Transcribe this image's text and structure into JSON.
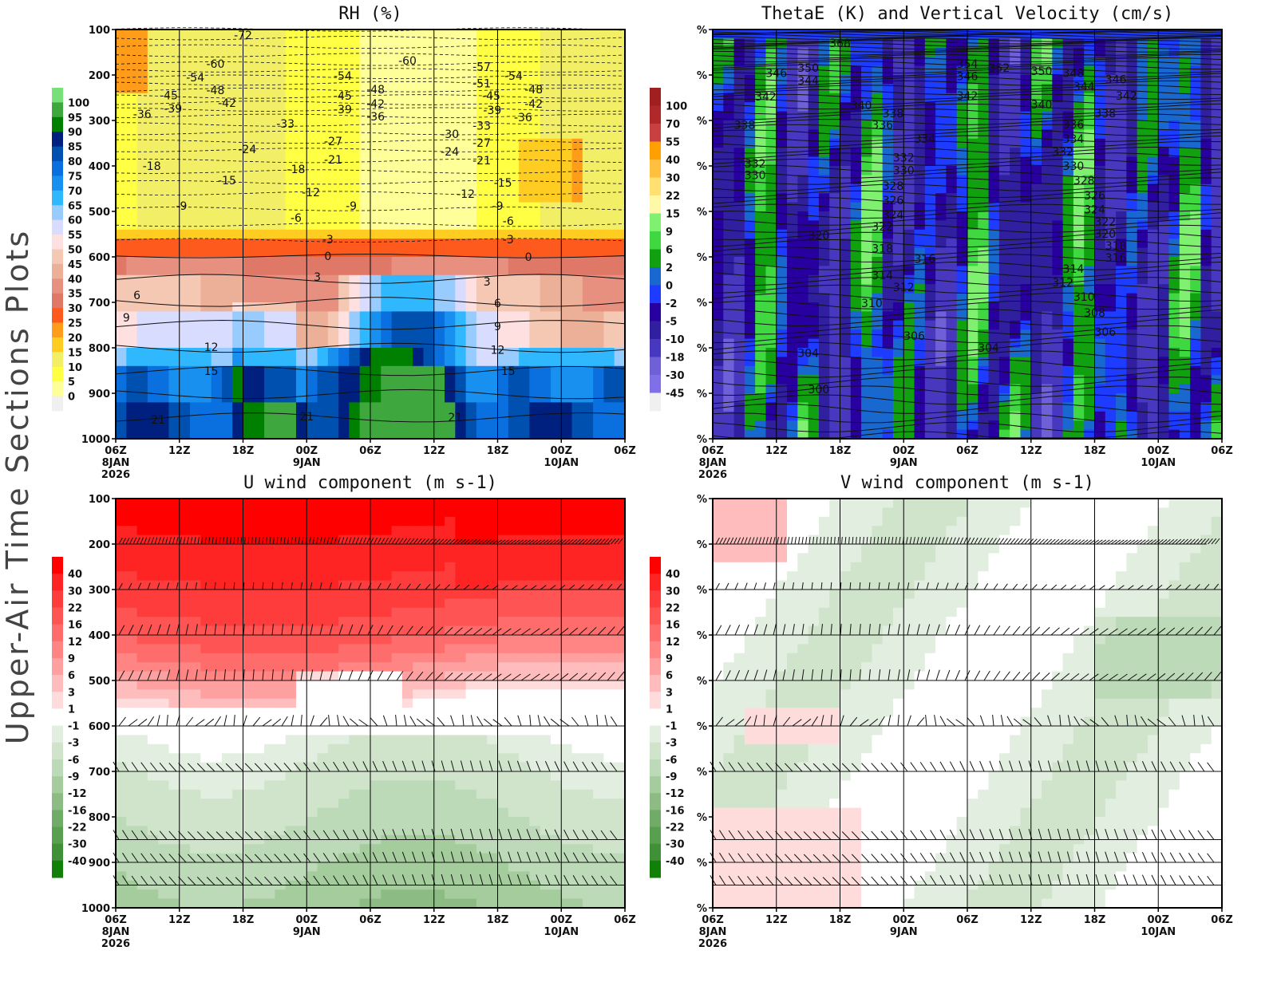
{
  "side_title": "Upper-Air Time Sections Plots",
  "x_ticks": [
    {
      "time": "06Z",
      "date": "8JAN",
      "year": "2026"
    },
    {
      "time": "12Z"
    },
    {
      "time": "18Z"
    },
    {
      "time": "00Z",
      "date": "9JAN"
    },
    {
      "time": "06Z"
    },
    {
      "time": "12Z"
    },
    {
      "time": "18Z"
    },
    {
      "time": "00Z",
      "date": "10JAN"
    },
    {
      "time": "06Z"
    }
  ],
  "chart_data": [
    {
      "type": "heatmap",
      "title": "RH (%)",
      "field": "rh",
      "x_range_hours": [
        0,
        48
      ],
      "y_range_hPa": [
        100,
        1000
      ],
      "y_ticks": [
        "100",
        "200",
        "300",
        "400",
        "500",
        "600",
        "700",
        "800",
        "900",
        "1000"
      ],
      "colorbar": {
        "labels": [
          "100",
          "95",
          "90",
          "85",
          "80",
          "75",
          "70",
          "65",
          "60",
          "55",
          "50",
          "45",
          "40",
          "35",
          "30",
          "25",
          "20",
          "15",
          "10",
          "5",
          "0"
        ],
        "levels": [
          100,
          95,
          90,
          85,
          80,
          75,
          70,
          65,
          60,
          55,
          50,
          45,
          40,
          35,
          30,
          25,
          20,
          15,
          10,
          5,
          0
        ],
        "colors": [
          "#78e078",
          "#3ea83e",
          "#008000",
          "#002080",
          "#0050b0",
          "#0a70e0",
          "#1890f0",
          "#30b8ff",
          "#98ccff",
          "#d8dcff",
          "#ffe0e0",
          "#f5c8b4",
          "#ecb098",
          "#e89080",
          "#e07868",
          "#ff5a1e",
          "#ff9c1a",
          "#ffcc22",
          "#f2ee66",
          "#ffff44",
          "#ffff99",
          "#f0f0f0"
        ]
      },
      "contour_field": "temperature (C)",
      "contour_labels": [
        {
          "t": 12,
          "p": 112,
          "v": "-72"
        },
        {
          "t": 9.4,
          "p": 175,
          "v": "-60"
        },
        {
          "t": 7.5,
          "p": 205,
          "v": "-54"
        },
        {
          "t": 9.4,
          "p": 233,
          "v": "-48"
        },
        {
          "t": 5,
          "p": 245,
          "v": "-45"
        },
        {
          "t": 10.5,
          "p": 261,
          "v": "-42"
        },
        {
          "t": 5.4,
          "p": 274,
          "v": "-39"
        },
        {
          "t": 2.5,
          "p": 286,
          "v": "-36"
        },
        {
          "t": 16,
          "p": 307,
          "v": "-33"
        },
        {
          "t": 12.4,
          "p": 363,
          "v": "-24"
        },
        {
          "t": 3.4,
          "p": 400,
          "v": "-18"
        },
        {
          "t": 10.5,
          "p": 432,
          "v": "-15"
        },
        {
          "t": 6.2,
          "p": 488,
          "v": "-9"
        },
        {
          "t": 20.5,
          "p": 346,
          "v": "-27"
        },
        {
          "t": 20.5,
          "p": 386,
          "v": "-21"
        },
        {
          "t": 17,
          "p": 407,
          "v": "-18"
        },
        {
          "t": 18.4,
          "p": 458,
          "v": "-12"
        },
        {
          "t": 17,
          "p": 514,
          "v": "-6"
        },
        {
          "t": 22.2,
          "p": 488,
          "v": "-9"
        },
        {
          "t": 20,
          "p": 561,
          "v": "-3"
        },
        {
          "t": 20,
          "p": 598,
          "v": "0"
        },
        {
          "t": 19,
          "p": 644,
          "v": "3"
        },
        {
          "t": 21.4,
          "p": 202,
          "v": "-54"
        },
        {
          "t": 21.4,
          "p": 246,
          "v": "-45"
        },
        {
          "t": 21.4,
          "p": 275,
          "v": "-39"
        },
        {
          "t": 24.5,
          "p": 232,
          "v": "-48"
        },
        {
          "t": 24.5,
          "p": 263,
          "v": "-42"
        },
        {
          "t": 24.5,
          "p": 291,
          "v": "-36"
        },
        {
          "t": 27.5,
          "p": 168,
          "v": "-60"
        },
        {
          "t": 34.5,
          "p": 182,
          "v": "-57"
        },
        {
          "t": 34.5,
          "p": 218,
          "v": "-51"
        },
        {
          "t": 37.5,
          "p": 202,
          "v": "-54"
        },
        {
          "t": 35.4,
          "p": 246,
          "v": "-45"
        },
        {
          "t": 35.5,
          "p": 277,
          "v": "-39"
        },
        {
          "t": 39.4,
          "p": 232,
          "v": "-48"
        },
        {
          "t": 39.4,
          "p": 263,
          "v": "-42"
        },
        {
          "t": 38.4,
          "p": 293,
          "v": "-36"
        },
        {
          "t": 31.5,
          "p": 330,
          "v": "-30"
        },
        {
          "t": 34.5,
          "p": 311,
          "v": "-33"
        },
        {
          "t": 31.5,
          "p": 368,
          "v": "-24"
        },
        {
          "t": 34.5,
          "p": 349,
          "v": "-27"
        },
        {
          "t": 34.5,
          "p": 388,
          "v": "-21"
        },
        {
          "t": 36.5,
          "p": 437,
          "v": "-15"
        },
        {
          "t": 33,
          "p": 461,
          "v": "-12"
        },
        {
          "t": 36,
          "p": 488,
          "v": "-9"
        },
        {
          "t": 37,
          "p": 521,
          "v": "-6"
        },
        {
          "t": 37,
          "p": 561,
          "v": "-3"
        },
        {
          "t": 38.9,
          "p": 600,
          "v": "0"
        },
        {
          "t": 35,
          "p": 654,
          "v": "3"
        },
        {
          "t": 36,
          "p": 702,
          "v": "6"
        },
        {
          "t": 36,
          "p": 753,
          "v": "9"
        },
        {
          "t": 36,
          "p": 804,
          "v": "12"
        },
        {
          "t": 37,
          "p": 851,
          "v": "15"
        },
        {
          "t": 32,
          "p": 953,
          "v": "21"
        },
        {
          "t": 18,
          "p": 951,
          "v": "21"
        },
        {
          "t": 4,
          "p": 958,
          "v": "21"
        },
        {
          "t": 9,
          "p": 851,
          "v": "15"
        },
        {
          "t": 9,
          "p": 798,
          "v": "12"
        },
        {
          "t": 1,
          "p": 733,
          "v": "9"
        },
        {
          "t": 2,
          "p": 684,
          "v": "6"
        }
      ]
    },
    {
      "type": "heatmap",
      "title": "ThetaE (K) and Vertical Velocity (cm/s)",
      "field": "omega",
      "x_range_hours": [
        0,
        48
      ],
      "y_range_hPa": [
        100,
        1000
      ],
      "y_ticks": [
        "%",
        "%",
        "%",
        "%",
        "%",
        "%",
        "%",
        "%",
        "%",
        "%"
      ],
      "colorbar": {
        "labels": [
          "100",
          "70",
          "55",
          "40",
          "30",
          "22",
          "15",
          "9",
          "6",
          "2",
          "0",
          "-2",
          "-5",
          "-10",
          "-18",
          "-30",
          "-45"
        ],
        "levels": [
          100,
          70,
          55,
          40,
          30,
          22,
          15,
          9,
          6,
          2,
          0,
          -2,
          -5,
          -10,
          -18,
          -30,
          -45
        ],
        "colors": [
          "#a02020",
          "#b02828",
          "#c84040",
          "#ffa000",
          "#ffc040",
          "#ffe070",
          "#fff8a8",
          "#80f070",
          "#40d840",
          "#10a010",
          "#1868d0",
          "#1e3cff",
          "#2800a0",
          "#3020a0",
          "#4838c0",
          "#7060d8",
          "#8070e8",
          "#f0f0f0"
        ]
      },
      "contour_field": "thetaE (K)",
      "contour_labels": [
        {
          "t": 12,
          "p": 130,
          "v": "368"
        },
        {
          "t": 9,
          "p": 184,
          "v": "350"
        },
        {
          "t": 6,
          "p": 196,
          "v": "346"
        },
        {
          "t": 9,
          "p": 212,
          "v": "344"
        },
        {
          "t": 5,
          "p": 247,
          "v": "342"
        },
        {
          "t": 14,
          "p": 267,
          "v": "340"
        },
        {
          "t": 3,
          "p": 310,
          "v": "338"
        },
        {
          "t": 17,
          "p": 284,
          "v": "338"
        },
        {
          "t": 16,
          "p": 310,
          "v": "336"
        },
        {
          "t": 20,
          "p": 340,
          "v": "334"
        },
        {
          "t": 4,
          "p": 395,
          "v": "332"
        },
        {
          "t": 4,
          "p": 420,
          "v": "330"
        },
        {
          "t": 18,
          "p": 382,
          "v": "332"
        },
        {
          "t": 18,
          "p": 410,
          "v": "330"
        },
        {
          "t": 17,
          "p": 444,
          "v": "328"
        },
        {
          "t": 17,
          "p": 475,
          "v": "326"
        },
        {
          "t": 17,
          "p": 507,
          "v": "324"
        },
        {
          "t": 16,
          "p": 533,
          "v": "322"
        },
        {
          "t": 10,
          "p": 553,
          "v": "320"
        },
        {
          "t": 16,
          "p": 582,
          "v": "318"
        },
        {
          "t": 20,
          "p": 604,
          "v": "316"
        },
        {
          "t": 16,
          "p": 640,
          "v": "314"
        },
        {
          "t": 18,
          "p": 667,
          "v": "312"
        },
        {
          "t": 15,
          "p": 702,
          "v": "310"
        },
        {
          "t": 19,
          "p": 774,
          "v": "306"
        },
        {
          "t": 9,
          "p": 811,
          "v": "304"
        },
        {
          "t": 26,
          "p": 800,
          "v": "304"
        },
        {
          "t": 10,
          "p": 891,
          "v": "300"
        },
        {
          "t": 24,
          "p": 175,
          "v": "354"
        },
        {
          "t": 24,
          "p": 203,
          "v": "346"
        },
        {
          "t": 27,
          "p": 184,
          "v": "352"
        },
        {
          "t": 31,
          "p": 191,
          "v": "350"
        },
        {
          "t": 24,
          "p": 246,
          "v": "342"
        },
        {
          "t": 31,
          "p": 265,
          "v": "340"
        },
        {
          "t": 34,
          "p": 196,
          "v": "348"
        },
        {
          "t": 35,
          "p": 225,
          "v": "344"
        },
        {
          "t": 38,
          "p": 210,
          "v": "346"
        },
        {
          "t": 39,
          "p": 246,
          "v": "342"
        },
        {
          "t": 37,
          "p": 284,
          "v": "338"
        },
        {
          "t": 34,
          "p": 309,
          "v": "336"
        },
        {
          "t": 34,
          "p": 340,
          "v": "334"
        },
        {
          "t": 33,
          "p": 368,
          "v": "332"
        },
        {
          "t": 34,
          "p": 400,
          "v": "330"
        },
        {
          "t": 35,
          "p": 432,
          "v": "328"
        },
        {
          "t": 36,
          "p": 465,
          "v": "326"
        },
        {
          "t": 36,
          "p": 496,
          "v": "324"
        },
        {
          "t": 37,
          "p": 523,
          "v": "322"
        },
        {
          "t": 37,
          "p": 549,
          "v": "320"
        },
        {
          "t": 38,
          "p": 575,
          "v": "318"
        },
        {
          "t": 38,
          "p": 602,
          "v": "316"
        },
        {
          "t": 34,
          "p": 626,
          "v": "314"
        },
        {
          "t": 33,
          "p": 656,
          "v": "312"
        },
        {
          "t": 35,
          "p": 688,
          "v": "310"
        },
        {
          "t": 36,
          "p": 723,
          "v": "308"
        },
        {
          "t": 37,
          "p": 765,
          "v": "306"
        }
      ]
    },
    {
      "type": "heatmap",
      "title": "U wind component (m s-1)",
      "field": "u",
      "x_range_hours": [
        0,
        48
      ],
      "y_range_hPa": [
        100,
        1000
      ],
      "y_ticks": [
        "100",
        "200",
        "300",
        "400",
        "500",
        "600",
        "700",
        "800",
        "900",
        "1000"
      ],
      "colorbar": {
        "labels": [
          "40",
          "30",
          "22",
          "16",
          "12",
          "9",
          "6",
          "3",
          "1",
          "-1",
          "-3",
          "-6",
          "-9",
          "-12",
          "-16",
          "-22",
          "-30",
          "-40"
        ],
        "levels": [
          40,
          30,
          22,
          16,
          12,
          9,
          6,
          3,
          1,
          -1,
          -3,
          -6,
          -9,
          -12,
          -16,
          -22,
          -30,
          -40
        ],
        "colors": [
          "#ff0000",
          "#ff2424",
          "#ff3c3c",
          "#ff5454",
          "#ff6c6c",
          "#ff8484",
          "#ffa0a0",
          "#ffbcbc",
          "#ffdcdc",
          "#ffffff",
          "#e2eee0",
          "#d0e4cc",
          "#bcdab8",
          "#a4cc9c",
          "#8cbc84",
          "#70ac68",
          "#58a050",
          "#409038",
          "#108008"
        ]
      },
      "barb_levels_hPa": [
        200,
        300,
        400,
        500,
        600,
        700,
        850,
        900,
        950
      ],
      "contour_labels": []
    },
    {
      "type": "heatmap",
      "title": "V wind component (m s-1)",
      "field": "v",
      "x_range_hours": [
        0,
        48
      ],
      "y_range_hPa": [
        100,
        1000
      ],
      "y_ticks": [
        "%",
        "%",
        "%",
        "%",
        "%",
        "%",
        "%",
        "%",
        "%",
        "%"
      ],
      "colorbar": {
        "labels": [
          "40",
          "30",
          "22",
          "16",
          "12",
          "9",
          "6",
          "3",
          "1",
          "-1",
          "-3",
          "-6",
          "-9",
          "-12",
          "-16",
          "-22",
          "-30",
          "-40"
        ],
        "levels": [
          40,
          30,
          22,
          16,
          12,
          9,
          6,
          3,
          1,
          -1,
          -3,
          -6,
          -9,
          -12,
          -16,
          -22,
          -30,
          -40
        ],
        "colors": [
          "#ff0000",
          "#ff2424",
          "#ff3c3c",
          "#ff5454",
          "#ff6c6c",
          "#ff8484",
          "#ffa0a0",
          "#ffbcbc",
          "#ffdcdc",
          "#ffffff",
          "#e2eee0",
          "#d0e4cc",
          "#bcdab8",
          "#a4cc9c",
          "#8cbc84",
          "#70ac68",
          "#58a050",
          "#409038",
          "#108008"
        ]
      },
      "barb_levels_hPa": [
        200,
        300,
        400,
        500,
        600,
        700,
        850,
        900,
        950
      ],
      "contour_labels": []
    }
  ]
}
